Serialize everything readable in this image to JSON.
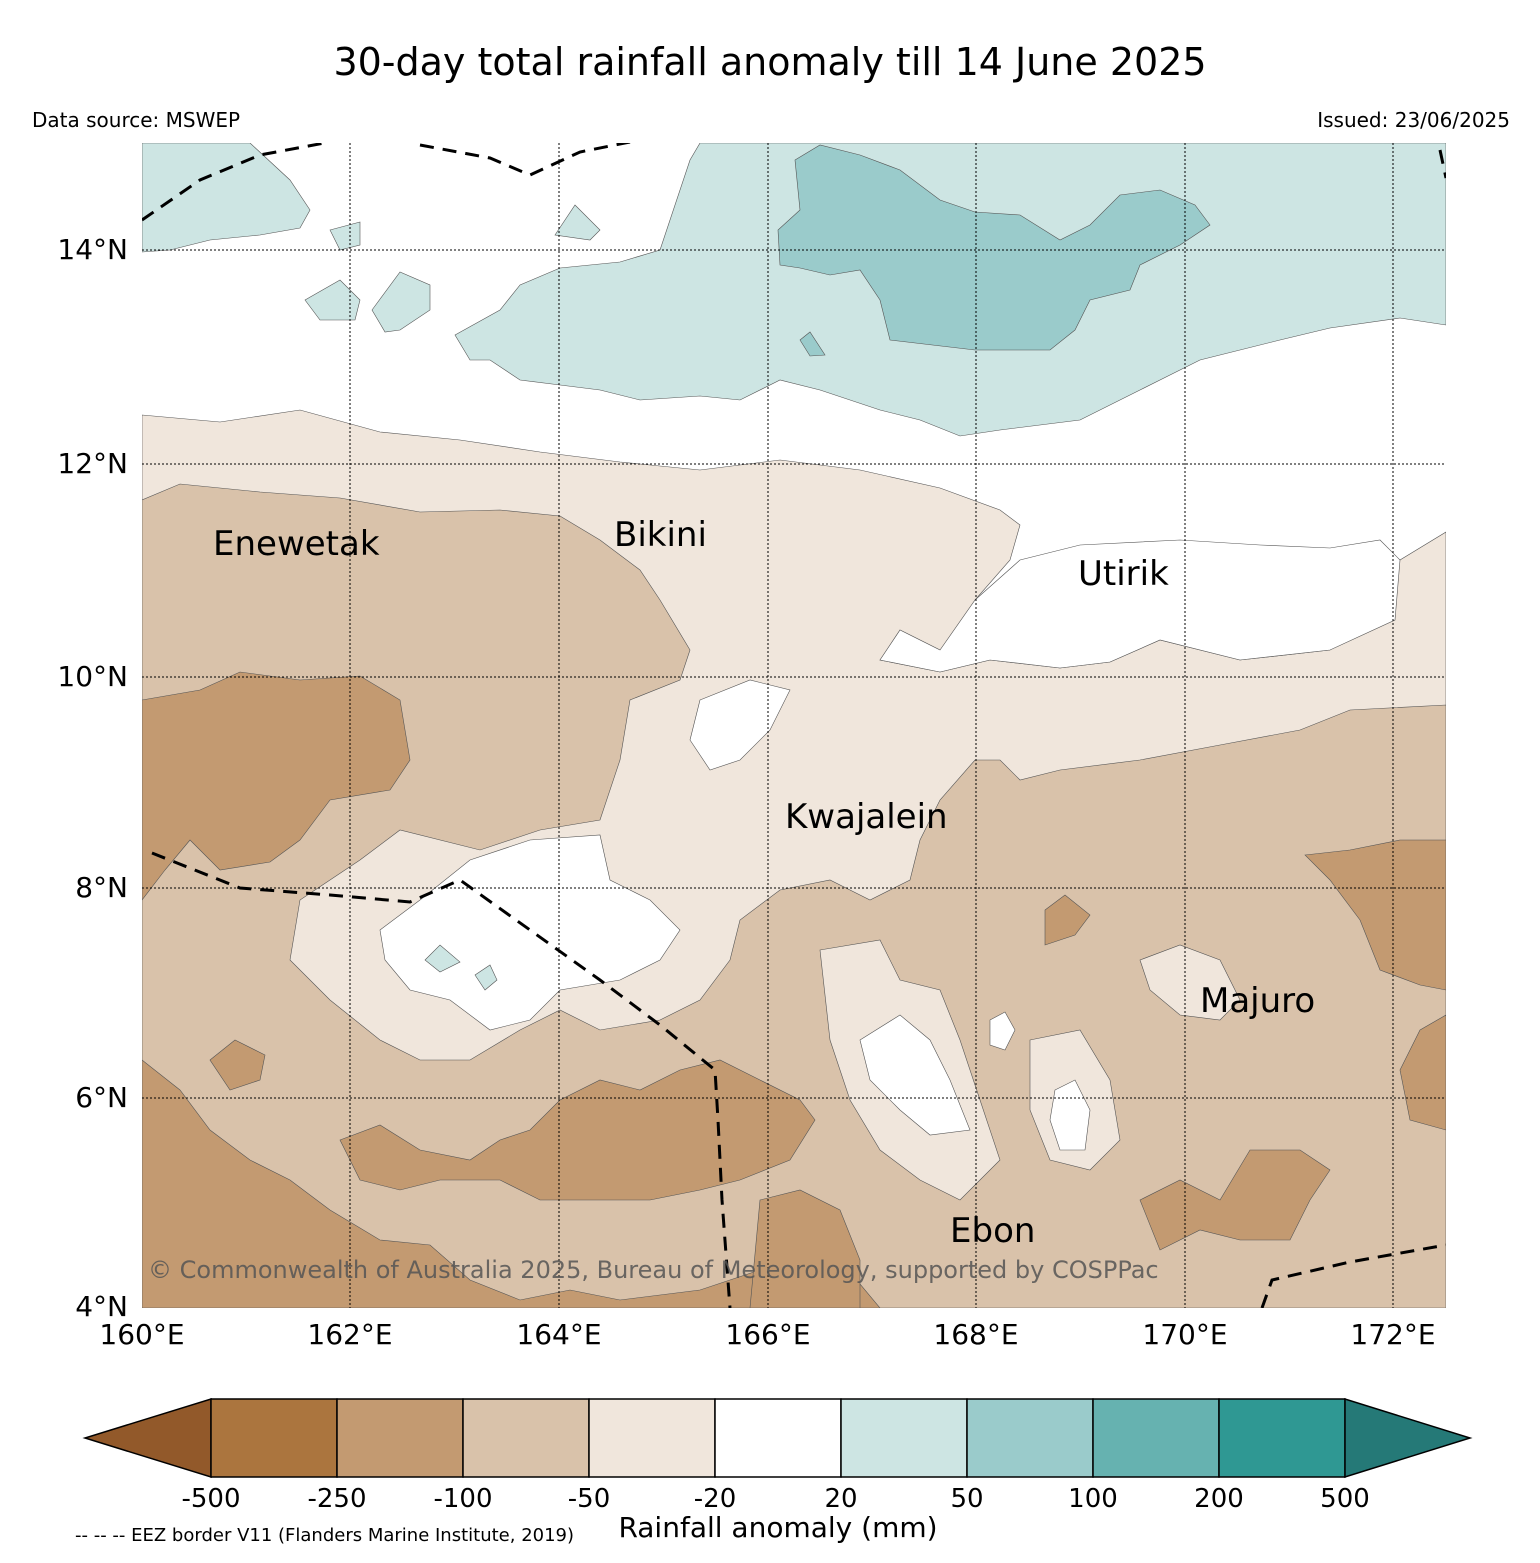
{
  "title": "30-day total rainfall anomaly till 14 June 2025",
  "data_source": "Data source: MSWEP",
  "issued": "Issued: 23/06/2025",
  "copyright": "© Commonwealth of Australia 2025, Bureau of Meteorology, supported by COSPPac",
  "eez_note": "-- -- -- EEZ border V11 (Flanders Marine Institute, 2019)",
  "map": {
    "lon_range": [
      160,
      172.5
    ],
    "lat_range": [
      4,
      15
    ],
    "lat_ticks": [
      "14°N",
      "12°N",
      "10°N",
      "8°N",
      "6°N",
      "4°N"
    ],
    "lon_ticks": [
      "160°E",
      "162°E",
      "164°E",
      "166°E",
      "168°E",
      "170°E",
      "172°E"
    ],
    "places": [
      {
        "name": "Enewetak",
        "lon": 162.25,
        "lat": 11.35
      },
      {
        "name": "Bikini",
        "lon": 165.55,
        "lat": 11.6
      },
      {
        "name": "Utirik",
        "lon": 169.85,
        "lat": 11.05
      },
      {
        "name": "Kwajalein",
        "lon": 167.4,
        "lat": 8.75
      },
      {
        "name": "Majuro",
        "lon": 171.3,
        "lat": 7.1
      },
      {
        "name": "Ebon",
        "lon": 168.65,
        "lat": 4.65
      }
    ]
  },
  "colorbar": {
    "title": "Rainfall anomaly (mm)",
    "ticks": [
      "-500",
      "-250",
      "-100",
      "-50",
      "-20",
      "20",
      "50",
      "100",
      "200",
      "500"
    ],
    "colors": [
      "#92592a",
      "#ab753e",
      "#c39a71",
      "#d9c2aa",
      "#f0e6dc",
      "#ffffff",
      "#cde5e3",
      "#9acbcb",
      "#66b2b0",
      "#2f9893",
      "#257977"
    ]
  }
}
